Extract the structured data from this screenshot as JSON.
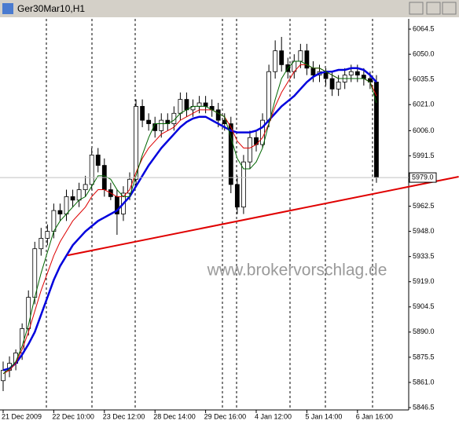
{
  "chart_data": {
    "type": "candlestick",
    "title": "Ger30Mar10,H1",
    "watermark": "www.brokervorschlag.de",
    "categories": [
      "21 Dec 2009",
      null,
      null,
      null,
      null,
      null,
      null,
      null,
      "22 Dec 10:00",
      null,
      null,
      null,
      null,
      null,
      null,
      null,
      "23 Dec 12:00",
      null,
      null,
      null,
      null,
      null,
      null,
      null,
      "28 Dec 14:00",
      null,
      null,
      null,
      null,
      null,
      null,
      null,
      "29 Dec 16:00",
      null,
      null,
      null,
      null,
      null,
      null,
      null,
      "4 Jan 12:00",
      null,
      null,
      null,
      null,
      null,
      null,
      null,
      "5 Jan 14:00",
      null,
      null,
      null,
      null,
      null,
      null,
      null,
      "6 Jan 16:00",
      null,
      null,
      null
    ],
    "open": [
      5862,
      5868,
      5872,
      5878,
      5892,
      5910,
      5938,
      5944,
      5948,
      5960,
      5958,
      5968,
      5966,
      5972,
      5975,
      5992,
      5986,
      5972,
      5968,
      5958,
      5970,
      5978,
      6020,
      6012,
      6010,
      6006,
      6012,
      6010,
      6016,
      6024,
      6018,
      6020,
      6022,
      6020,
      6018,
      6012,
      6010,
      5975,
      5962,
      5988,
      6002,
      5998,
      6012,
      6040,
      6052,
      6044,
      6040,
      6046,
      6052,
      6042,
      6038,
      6040,
      6036,
      6030,
      6034,
      6038,
      6040,
      6038,
      6036,
      6034
    ],
    "high": [
      5873,
      5876,
      5880,
      5895,
      5914,
      5942,
      5950,
      5952,
      5964,
      5964,
      5972,
      5972,
      5976,
      5980,
      5996,
      5996,
      5990,
      5976,
      5972,
      5974,
      5982,
      6024,
      6024,
      6016,
      6014,
      6016,
      6016,
      6020,
      6028,
      6028,
      6024,
      6026,
      6026,
      6024,
      6022,
      6016,
      6014,
      5980,
      5992,
      6006,
      6006,
      6016,
      6044,
      6058,
      6060,
      6048,
      6050,
      6056,
      6056,
      6046,
      6044,
      6042,
      6040,
      6038,
      6042,
      6044,
      6044,
      6042,
      6040,
      6038
    ],
    "low": [
      5856,
      5864,
      5868,
      5874,
      5888,
      5906,
      5934,
      5940,
      5944,
      5954,
      5954,
      5962,
      5962,
      5968,
      5972,
      5982,
      5968,
      5966,
      5946,
      5954,
      5966,
      5974,
      6008,
      6006,
      6002,
      6002,
      6006,
      6006,
      6012,
      6014,
      6014,
      6016,
      6016,
      6014,
      6008,
      6006,
      5970,
      5958,
      5958,
      5984,
      5994,
      5996,
      6008,
      6036,
      6040,
      6036,
      6036,
      6042,
      6038,
      6034,
      6034,
      6032,
      6026,
      6026,
      6030,
      6034,
      6034,
      6032,
      6030,
      5976
    ],
    "close": [
      5868,
      5872,
      5878,
      5892,
      5910,
      5938,
      5944,
      5948,
      5960,
      5958,
      5968,
      5966,
      5972,
      5975,
      5992,
      5986,
      5972,
      5968,
      5958,
      5970,
      5978,
      6020,
      6012,
      6010,
      6006,
      6012,
      6010,
      6016,
      6024,
      6018,
      6020,
      6022,
      6020,
      6018,
      6012,
      6010,
      5975,
      5962,
      5988,
      6002,
      5998,
      6012,
      6040,
      6052,
      6044,
      6040,
      6046,
      6052,
      6042,
      6038,
      6040,
      6036,
      6030,
      6034,
      6038,
      6040,
      6038,
      6036,
      6034,
      5979
    ],
    "lines": [
      {
        "color": "#0000dd",
        "values": [
          5868,
          5869,
          5872,
          5877,
          5883,
          5890,
          5900,
          5910,
          5920,
          5928,
          5934,
          5940,
          5944,
          5948,
          5951,
          5954,
          5956,
          5958,
          5960,
          5964,
          5968,
          5974,
          5980,
          5986,
          5991,
          5996,
          6000,
          6004,
          6008,
          6011,
          6013,
          6014,
          6014,
          6012,
          6010,
          6008,
          6006,
          6005,
          6005,
          6005,
          6006,
          6008,
          6012,
          6016,
          6020,
          6023,
          6026,
          6030,
          6034,
          6037,
          6039,
          6040,
          6040,
          6041,
          6041,
          6042,
          6042,
          6041,
          6038,
          6034
        ]
      },
      {
        "color": "#dd0000",
        "values": [
          5866,
          5868,
          5872,
          5880,
          5890,
          5902,
          5914,
          5924,
          5934,
          5942,
          5948,
          5954,
          5958,
          5962,
          5968,
          5972,
          5972,
          5970,
          5968,
          5968,
          5972,
          5982,
          5990,
          5996,
          6000,
          6004,
          6006,
          6008,
          6012,
          6014,
          6016,
          6018,
          6018,
          6018,
          6016,
          6014,
          6008,
          6000,
          5996,
          5996,
          5998,
          6002,
          6010,
          6020,
          6028,
          6034,
          6040,
          6044,
          6044,
          6042,
          6042,
          6040,
          6038,
          6036,
          6036,
          6036,
          6036,
          6036,
          6034,
          6026
        ]
      },
      {
        "color": "#006600",
        "values": [
          5866,
          5869,
          5873,
          5882,
          5894,
          5910,
          5924,
          5936,
          5948,
          5954,
          5958,
          5962,
          5966,
          5968,
          5974,
          5980,
          5980,
          5978,
          5972,
          5968,
          5968,
          5980,
          5992,
          6002,
          6010,
          6010,
          6010,
          6012,
          6016,
          6018,
          6020,
          6020,
          6020,
          6018,
          6016,
          6014,
          6002,
          5990,
          5984,
          5984,
          5988,
          5996,
          6010,
          6024,
          6036,
          6042,
          6046,
          6046,
          6044,
          6042,
          6042,
          6040,
          6038,
          6036,
          6036,
          6036,
          6036,
          6036,
          6034,
          6022
        ]
      }
    ],
    "trendline": {
      "color": "#e00000",
      "x": [
        10.2,
        72
      ],
      "values": [
        5934.2,
        5979.5
      ]
    },
    "last_price": {
      "value": 5979.0,
      "label": "5979.0"
    },
    "ylim": [
      5845.6,
      6069.5
    ],
    "yticks": [
      6064.5,
      {
        "value": 6050.0,
        "label": "6050.0"
      },
      6035.5,
      {
        "value": 6021.0,
        "label": "6021.0"
      },
      {
        "value": 6006.0,
        "label": "6006.0"
      },
      5991.5,
      5962.5,
      {
        "value": 5948.0,
        "label": "5948.0"
      },
      5933.5,
      {
        "value": 5919.0,
        "label": "5919.0"
      },
      5904.5,
      {
        "value": 5890.0,
        "label": "5890.0"
      },
      5875.5,
      {
        "value": 5861.0,
        "label": "5861.0"
      },
      5846.5
    ]
  }
}
